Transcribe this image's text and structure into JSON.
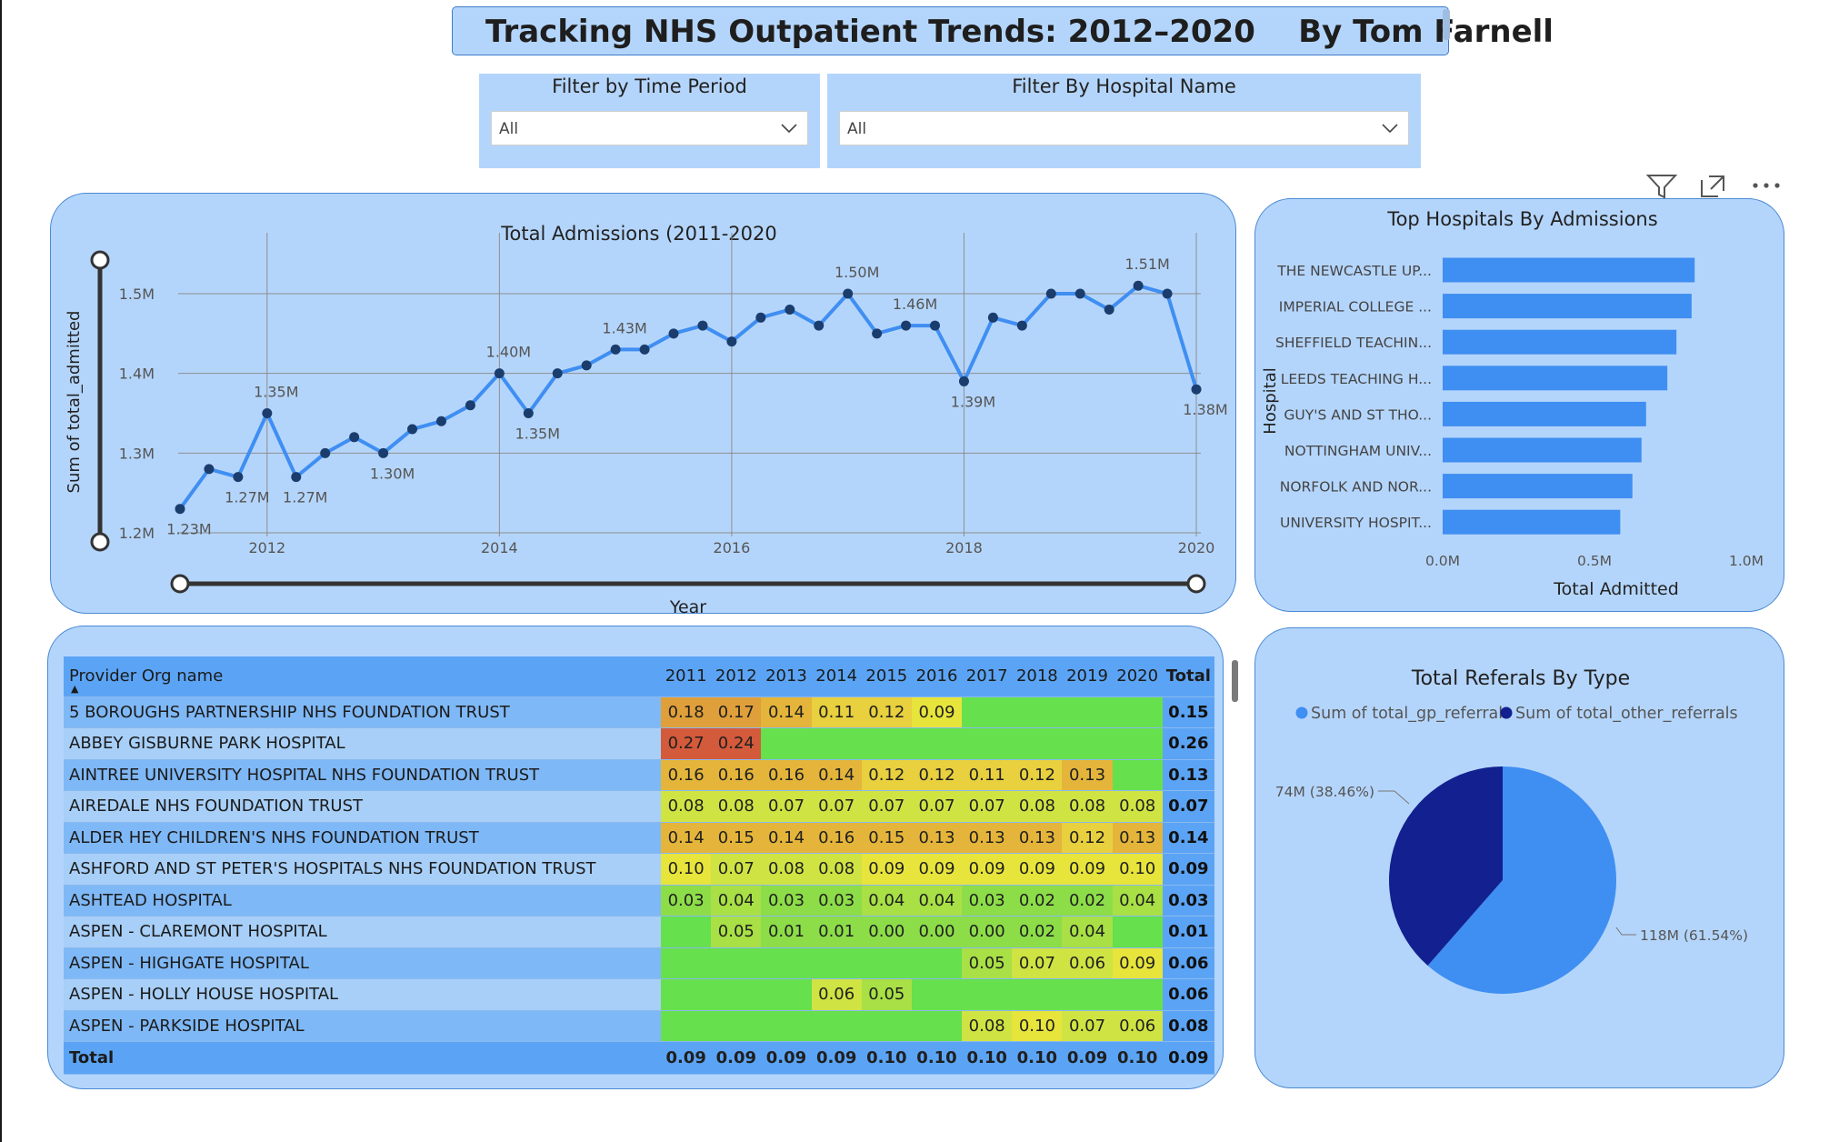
{
  "header": {
    "title": "Tracking NHS Outpatient Trends: 2012–2020    By Tom Farnell"
  },
  "filters": [
    {
      "label": "Filter by Time Period",
      "value": "All"
    },
    {
      "label": "Filter By Hospital Name",
      "value": "All"
    }
  ],
  "colors": {
    "panel": "#b4d5fb",
    "accent": "#3f8ef2",
    "dark_series": "#12218f",
    "line": "#3f8ef2",
    "point": "#1a3d6e"
  },
  "chart_data": [
    {
      "type": "line",
      "title": "Total Admissions (2011-2020",
      "xlabel": "Year",
      "ylabel": "Sum of total_admitted",
      "xlim": [
        2011.25,
        2020.0
      ],
      "ylim": [
        1.2,
        1.5
      ],
      "ytick_labels": [
        "1.2M",
        "1.3M",
        "1.4M",
        "1.5M"
      ],
      "xtick_labels": [
        "2012",
        "2014",
        "2016",
        "2018",
        "2020"
      ],
      "grid": true,
      "x": [
        2011.25,
        2011.5,
        2011.75,
        2012.0,
        2012.25,
        2012.5,
        2012.75,
        2013.0,
        2013.25,
        2013.5,
        2013.75,
        2014.0,
        2014.25,
        2014.5,
        2014.75,
        2015.0,
        2015.25,
        2015.5,
        2015.75,
        2016.0,
        2016.25,
        2016.5,
        2016.75,
        2017.0,
        2017.25,
        2017.5,
        2017.75,
        2018.0,
        2018.25,
        2018.5,
        2018.75,
        2019.0,
        2019.25,
        2019.5,
        2019.75,
        2020.0
      ],
      "values": [
        1.23,
        1.28,
        1.27,
        1.35,
        1.27,
        1.3,
        1.32,
        1.3,
        1.33,
        1.34,
        1.36,
        1.4,
        1.35,
        1.4,
        1.41,
        1.43,
        1.43,
        1.45,
        1.46,
        1.44,
        1.47,
        1.48,
        1.46,
        1.5,
        1.45,
        1.46,
        1.46,
        1.39,
        1.47,
        1.46,
        1.5,
        1.5,
        1.48,
        1.51,
        1.5,
        1.38
      ],
      "data_labels": [
        {
          "i": 0,
          "text": "1.23M",
          "pos": "below"
        },
        {
          "i": 2,
          "text": "1.27M",
          "pos": "below"
        },
        {
          "i": 3,
          "text": "1.35M",
          "pos": "above"
        },
        {
          "i": 4,
          "text": "1.27M",
          "pos": "below"
        },
        {
          "i": 7,
          "text": "1.30M",
          "pos": "below"
        },
        {
          "i": 11,
          "text": "1.40M",
          "pos": "above"
        },
        {
          "i": 12,
          "text": "1.35M",
          "pos": "below"
        },
        {
          "i": 15,
          "text": "1.43M",
          "pos": "above"
        },
        {
          "i": 23,
          "text": "1.50M",
          "pos": "above"
        },
        {
          "i": 25,
          "text": "1.46M",
          "pos": "above"
        },
        {
          "i": 27,
          "text": "1.39M",
          "pos": "below"
        },
        {
          "i": 33,
          "text": "1.51M",
          "pos": "above"
        },
        {
          "i": 35,
          "text": "1.38M",
          "pos": "below"
        }
      ]
    },
    {
      "type": "bar",
      "orientation": "horizontal",
      "title": "Top Hospitals By Admissions",
      "xlabel": "Total Admitted",
      "ylabel": "Hospital",
      "xlim": [
        0,
        1.0
      ],
      "xtick_labels": [
        "0.0M",
        "0.5M",
        "1.0M"
      ],
      "categories": [
        "THE NEWCASTLE UP...",
        "IMPERIAL COLLEGE ...",
        "SHEFFIELD TEACHIN...",
        "LEEDS TEACHING H...",
        "GUY'S AND ST THO...",
        "NOTTINGHAM UNIV...",
        "NORFOLK AND NOR...",
        "UNIVERSITY HOSPIT..."
      ],
      "values": [
        0.83,
        0.82,
        0.77,
        0.74,
        0.67,
        0.655,
        0.625,
        0.585
      ]
    },
    {
      "type": "pie",
      "title": "Total Referals By Type",
      "legend_position": "top",
      "series": [
        {
          "name": "Sum of total_gp_referrals",
          "value": 118,
          "label": "118M (61.54%)",
          "color": "#3f8ef2"
        },
        {
          "name": "Sum of total_other_referrals",
          "value": 74,
          "label": "74M (38.46%)",
          "color": "#12218f"
        }
      ]
    },
    {
      "type": "table",
      "title": "",
      "columns": [
        "Provider Org name",
        "2011",
        "2012",
        "2013",
        "2014",
        "2015",
        "2016",
        "2017",
        "2018",
        "2019",
        "2020",
        "Total"
      ],
      "rows": [
        {
          "name": "5 BOROUGHS PARTNERSHIP NHS FOUNDATION TRUST",
          "vals": [
            "0.18",
            "0.17",
            "0.14",
            "0.11",
            "0.12",
            "0.09",
            "",
            "",
            "",
            ""
          ],
          "total": "0.15"
        },
        {
          "name": "ABBEY GISBURNE PARK HOSPITAL",
          "vals": [
            "0.27",
            "0.24",
            "",
            "",
            "",
            "",
            "",
            "",
            "",
            ""
          ],
          "total": "0.26"
        },
        {
          "name": "AINTREE UNIVERSITY HOSPITAL NHS FOUNDATION TRUST",
          "vals": [
            "0.16",
            "0.16",
            "0.16",
            "0.14",
            "0.12",
            "0.12",
            "0.11",
            "0.12",
            "0.13",
            ""
          ],
          "total": "0.13"
        },
        {
          "name": "AIREDALE NHS FOUNDATION TRUST",
          "vals": [
            "0.08",
            "0.08",
            "0.07",
            "0.07",
            "0.07",
            "0.07",
            "0.07",
            "0.08",
            "0.08",
            "0.08"
          ],
          "total": "0.07"
        },
        {
          "name": "ALDER HEY CHILDREN'S NHS FOUNDATION TRUST",
          "vals": [
            "0.14",
            "0.15",
            "0.14",
            "0.16",
            "0.15",
            "0.13",
            "0.13",
            "0.13",
            "0.12",
            "0.13"
          ],
          "total": "0.14"
        },
        {
          "name": "ASHFORD AND ST PETER'S HOSPITALS NHS FOUNDATION TRUST",
          "vals": [
            "0.10",
            "0.07",
            "0.08",
            "0.08",
            "0.09",
            "0.09",
            "0.09",
            "0.09",
            "0.09",
            "0.10"
          ],
          "total": "0.09"
        },
        {
          "name": "ASHTEAD HOSPITAL",
          "vals": [
            "0.03",
            "0.04",
            "0.03",
            "0.03",
            "0.04",
            "0.04",
            "0.03",
            "0.02",
            "0.02",
            "0.04"
          ],
          "total": "0.03"
        },
        {
          "name": "ASPEN - CLAREMONT HOSPITAL",
          "vals": [
            "",
            "0.05",
            "0.01",
            "0.01",
            "0.00",
            "0.00",
            "0.00",
            "0.02",
            "0.04",
            ""
          ],
          "total": "0.01"
        },
        {
          "name": "ASPEN - HIGHGATE HOSPITAL",
          "vals": [
            "",
            "",
            "",
            "",
            "",
            "",
            "0.05",
            "0.07",
            "0.06",
            "0.09"
          ],
          "total": "0.06"
        },
        {
          "name": "ASPEN - HOLLY HOUSE HOSPITAL",
          "vals": [
            "",
            "",
            "",
            "0.06",
            "0.05",
            "",
            "",
            "",
            "",
            ""
          ],
          "total": "0.06"
        },
        {
          "name": "ASPEN - PARKSIDE HOSPITAL",
          "vals": [
            "",
            "",
            "",
            "",
            "",
            "",
            "0.08",
            "0.10",
            "0.07",
            "0.06"
          ],
          "total": "0.08"
        }
      ],
      "footer": {
        "name": "Total",
        "vals": [
          "0.09",
          "0.09",
          "0.09",
          "0.09",
          "0.10",
          "0.10",
          "0.10",
          "0.10",
          "0.09",
          "0.10"
        ],
        "total": "0.09"
      }
    }
  ]
}
